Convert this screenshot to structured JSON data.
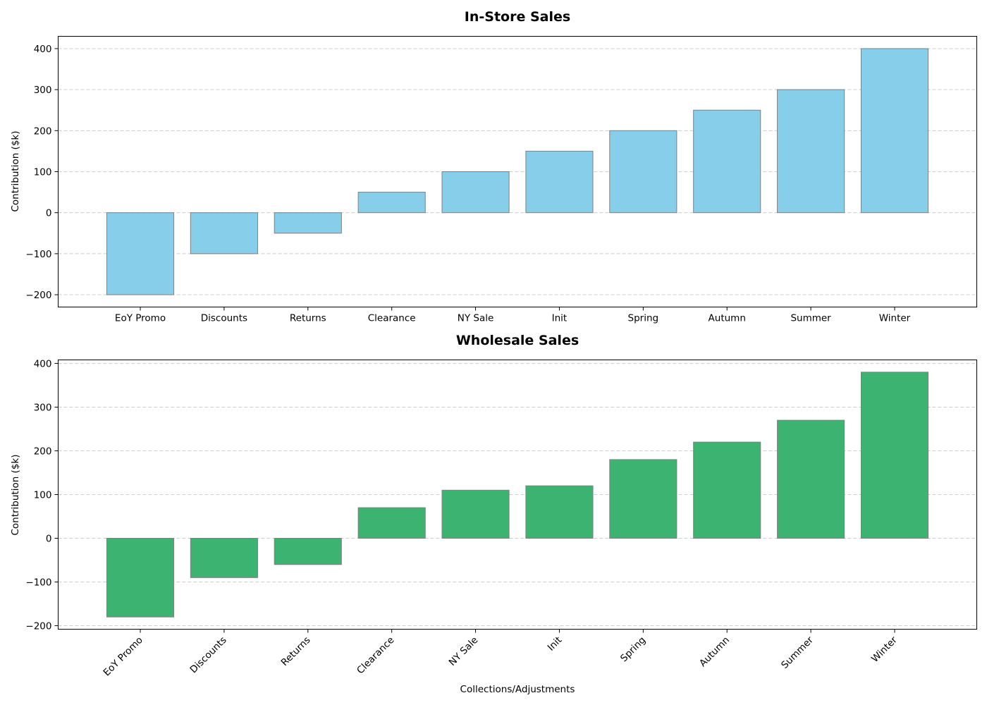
{
  "chart_data": [
    {
      "type": "bar",
      "title": "In-Store Sales",
      "xlabel": "",
      "ylabel": "Contribution ($k)",
      "categories": [
        "EoY Promo",
        "Discounts",
        "Returns",
        "Clearance",
        "NY Sale",
        "Init",
        "Spring",
        "Autumn",
        "Summer",
        "Winter"
      ],
      "values": [
        -200,
        -100,
        -50,
        50,
        100,
        150,
        200,
        250,
        300,
        400
      ],
      "ylim": [
        -230,
        430
      ],
      "yticks": [
        -200,
        -100,
        0,
        100,
        200,
        300,
        400
      ],
      "color": "#87CEEB",
      "grid": true,
      "xtick_rotation": 0
    },
    {
      "type": "bar",
      "title": "Wholesale Sales",
      "xlabel": "Collections/Adjustments",
      "ylabel": "Contribution ($k)",
      "categories": [
        "EoY Promo",
        "Discounts",
        "Returns",
        "Clearance",
        "NY Sale",
        "Init",
        "Spring",
        "Autumn",
        "Summer",
        "Winter"
      ],
      "values": [
        -180,
        -90,
        -60,
        70,
        110,
        120,
        180,
        220,
        270,
        380
      ],
      "ylim": [
        -208,
        408
      ],
      "yticks": [
        -200,
        -100,
        0,
        100,
        200,
        300,
        400
      ],
      "color": "#3CB371",
      "grid": true,
      "xtick_rotation": -45
    }
  ]
}
